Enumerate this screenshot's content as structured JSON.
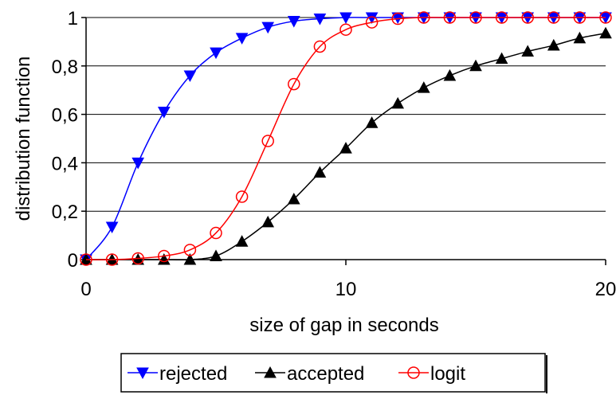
{
  "chart_data": {
    "type": "line",
    "title": "",
    "xlabel": "size of gap  in seconds",
    "ylabel": "distribution function",
    "xlim": [
      0,
      20
    ],
    "ylim": [
      0,
      1
    ],
    "x_ticks": [
      {
        "value": 0,
        "label": "0"
      },
      {
        "value": 10,
        "label": "10"
      },
      {
        "value": 20,
        "label": "20"
      }
    ],
    "y_ticks": [
      {
        "value": 0,
        "label": "0"
      },
      {
        "value": 0.2,
        "label": "0,2"
      },
      {
        "value": 0.4,
        "label": "0,4"
      },
      {
        "value": 0.6,
        "label": "0,6"
      },
      {
        "value": 0.8,
        "label": "0,8"
      },
      {
        "value": 1,
        "label": "1"
      }
    ],
    "grid": {
      "horizontal": true,
      "vertical": false
    },
    "legend_position": "bottom",
    "series": [
      {
        "name": "rejected",
        "color": "#0000ff",
        "marker": "triangle-down",
        "x": [
          0,
          1,
          2,
          3,
          4,
          5,
          6,
          7,
          8,
          9,
          10,
          11,
          12,
          13,
          14,
          15,
          16,
          17,
          18,
          19,
          20
        ],
        "y": [
          0,
          0.135,
          0.4,
          0.61,
          0.76,
          0.855,
          0.915,
          0.96,
          0.985,
          0.995,
          1,
          1,
          1,
          1,
          1,
          1,
          1,
          1,
          1,
          1,
          1
        ]
      },
      {
        "name": "accepted",
        "color": "#000000",
        "marker": "triangle-up",
        "x": [
          0,
          1,
          2,
          3,
          4,
          5,
          6,
          7,
          8,
          9,
          10,
          11,
          12,
          13,
          14,
          15,
          16,
          17,
          18,
          19,
          20
        ],
        "y": [
          0,
          0,
          0,
          0,
          0,
          0.015,
          0.075,
          0.155,
          0.25,
          0.36,
          0.46,
          0.565,
          0.645,
          0.71,
          0.76,
          0.8,
          0.83,
          0.86,
          0.885,
          0.915,
          0.935
        ]
      },
      {
        "name": "logit",
        "color": "#ff0000",
        "marker": "circle-open",
        "x": [
          0,
          1,
          2,
          3,
          4,
          5,
          6,
          7,
          8,
          9,
          10,
          11,
          12,
          13,
          14,
          15,
          16,
          17,
          18,
          19,
          20
        ],
        "y": [
          0,
          0,
          0.005,
          0.015,
          0.04,
          0.11,
          0.26,
          0.49,
          0.725,
          0.88,
          0.95,
          0.98,
          0.995,
          1,
          1,
          1,
          1,
          1,
          1,
          1,
          1
        ]
      }
    ]
  }
}
